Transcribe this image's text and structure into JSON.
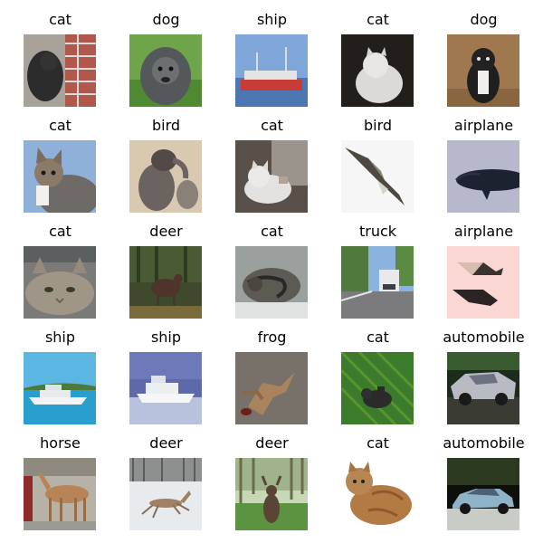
{
  "grid": {
    "rows": 5,
    "cols": 5,
    "items": [
      {
        "label": "cat"
      },
      {
        "label": "dog"
      },
      {
        "label": "ship"
      },
      {
        "label": "cat"
      },
      {
        "label": "dog"
      },
      {
        "label": "cat"
      },
      {
        "label": "bird"
      },
      {
        "label": "cat"
      },
      {
        "label": "bird"
      },
      {
        "label": "airplane"
      },
      {
        "label": "cat"
      },
      {
        "label": "deer"
      },
      {
        "label": "cat"
      },
      {
        "label": "truck"
      },
      {
        "label": "airplane"
      },
      {
        "label": "ship"
      },
      {
        "label": "ship"
      },
      {
        "label": "frog"
      },
      {
        "label": "cat"
      },
      {
        "label": "automobile"
      },
      {
        "label": "horse"
      },
      {
        "label": "deer"
      },
      {
        "label": "deer"
      },
      {
        "label": "cat"
      },
      {
        "label": "automobile"
      }
    ]
  }
}
